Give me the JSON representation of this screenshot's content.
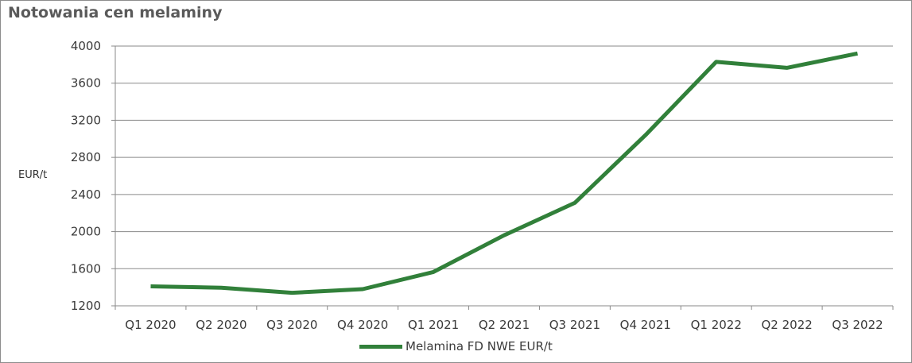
{
  "chart_data": {
    "type": "line",
    "title": "Notowania cen melaminy",
    "xlabel": "",
    "ylabel": "EUR/t",
    "ylim": [
      1200,
      4000
    ],
    "yticks": [
      1200,
      1600,
      2000,
      2400,
      2800,
      3200,
      3600,
      4000
    ],
    "categories": [
      "Q1 2020",
      "Q2 2020",
      "Q3 2020",
      "Q4 2020",
      "Q1 2021",
      "Q2 2021",
      "Q3 2021",
      "Q4 2021",
      "Q1 2022",
      "Q2 2022",
      "Q3 2022"
    ],
    "series": [
      {
        "name": "Melamina FD NWE EUR/t",
        "color": "#31803a",
        "values": [
          1410,
          1395,
          1340,
          1380,
          1565,
          1960,
          2310,
          3040,
          3830,
          3765,
          3920
        ]
      }
    ],
    "grid": "horizontal",
    "legend_position": "bottom"
  }
}
